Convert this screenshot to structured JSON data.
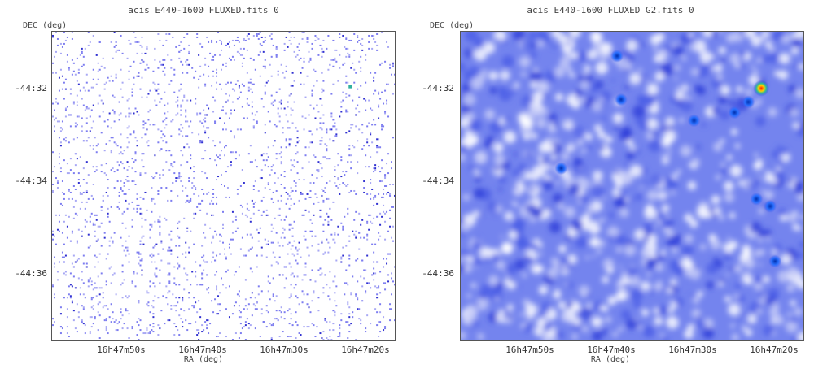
{
  "panels": [
    {
      "title": "acis_E440-1600_FLUXED.fits_0",
      "ylabel": "DEC (deg)",
      "xlabel": "RA (deg)",
      "yticks": [
        "-44:32",
        "-44:34",
        "-44:36"
      ],
      "xticks": [
        "16h47m50s",
        "16h47m40s",
        "16h47m30s",
        "16h47m20s"
      ]
    },
    {
      "title": "acis_E440-1600_FLUXED_G2.fits_0",
      "ylabel": "DEC (deg)",
      "xlabel": "RA (deg)",
      "yticks": [
        "-44:32",
        "-44:34",
        "-44:36"
      ],
      "xticks": [
        "16h47m50s",
        "16h47m40s",
        "16h47m30s",
        "16h47m20s"
      ]
    }
  ],
  "colors": {
    "scatter": "#7d7df0",
    "dark": "#3030d0",
    "smooth_base": "#6f7ff0",
    "hot": "#ff3000"
  }
}
